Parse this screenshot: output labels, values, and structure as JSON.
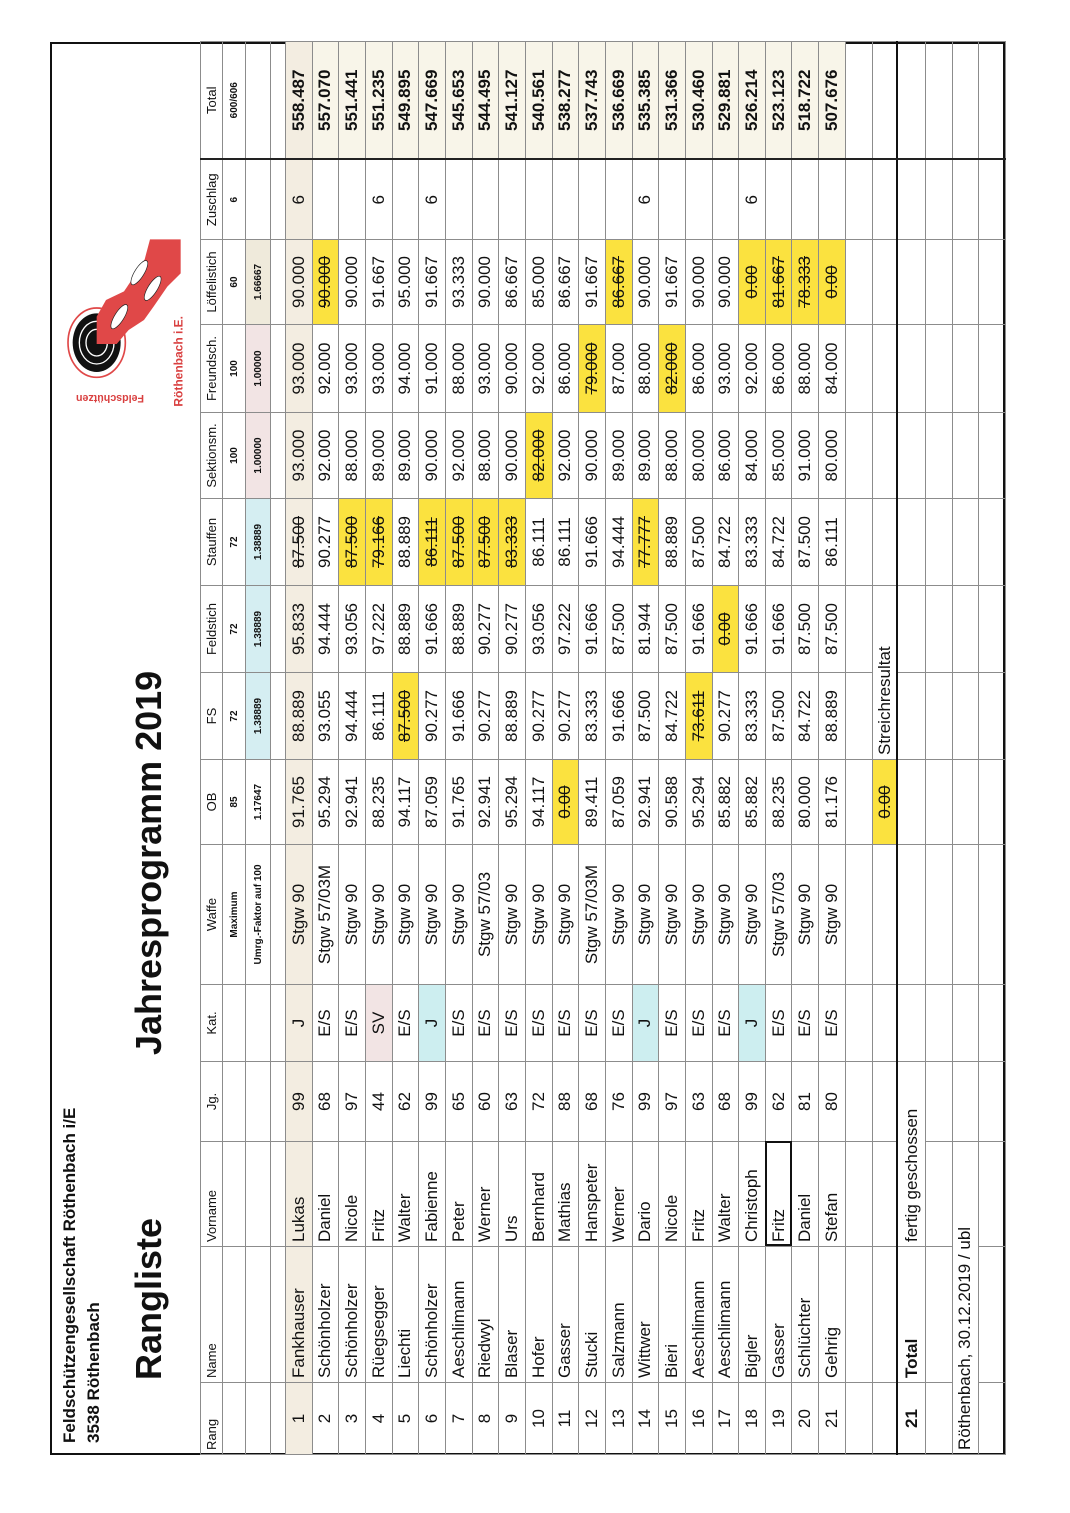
{
  "header": {
    "org": "Feldschützengesellschaft Röthenbach i/E",
    "city": "3538 Röthenbach",
    "title": "Rangliste",
    "subtitle": "Jahresprogramm 2019"
  },
  "logo": {
    "top_text": "Feldschützen",
    "bottom_text": "Röthenbach i.E."
  },
  "colors": {
    "strike_highlight": "#fbe23f",
    "junior": "#cdeef0",
    "senior_veteran": "#f2e4e4",
    "leader_row": "#f3ede1",
    "total_column": "#f8f5e9",
    "logo_red": "#e04848"
  },
  "columns": [
    {
      "key": "rang",
      "label": "Rang"
    },
    {
      "key": "name",
      "label": "Name"
    },
    {
      "key": "vorname",
      "label": "Vorname"
    },
    {
      "key": "jg",
      "label": "Jg."
    },
    {
      "key": "kat",
      "label": "Kat."
    },
    {
      "key": "waffe",
      "label": "Waffe",
      "max": "Maximum",
      "factor": "Umrg.-Faktor auf 100"
    },
    {
      "key": "ob",
      "label": "OB",
      "max": "85",
      "factor": "1.17647"
    },
    {
      "key": "fs",
      "label": "FS",
      "max": "72",
      "factor": "1.38889"
    },
    {
      "key": "feldstich",
      "label": "Feldstich",
      "max": "72",
      "factor": "1.38889"
    },
    {
      "key": "stauffen",
      "label": "Stauffen",
      "max": "72",
      "factor": "1.38889"
    },
    {
      "key": "sektionsm",
      "label": "Sektionsm.",
      "max": "100",
      "factor": "1.00000"
    },
    {
      "key": "freundsch",
      "label": "Freundsch.",
      "max": "100",
      "factor": "1.00000"
    },
    {
      "key": "loeffelstich",
      "label": "Löffelistich",
      "max": "60",
      "factor": "1.66667"
    },
    {
      "key": "zuschlag",
      "label": "Zuschlag",
      "max": "6"
    },
    {
      "key": "total",
      "label": "Total",
      "max": "600/606"
    }
  ],
  "rows": [
    {
      "rang": "1",
      "name": "Fankhauser",
      "vorname": "Lukas",
      "jg": "99",
      "kat": "J",
      "waffe": "Stgw 90",
      "ob": "91.765",
      "fs": "88.889",
      "feldstich": "95.833",
      "stauffen": "87.500",
      "sektionsm": "93.000",
      "freundsch": "93.000",
      "loeffelstich": "90.000",
      "zuschlag": "6",
      "total": "558.487",
      "struck": [
        "stauffen"
      ]
    },
    {
      "rang": "2",
      "name": "Schönholzer",
      "vorname": "Daniel",
      "jg": "68",
      "kat": "E/S",
      "waffe": "Stgw 57/03M",
      "ob": "95.294",
      "fs": "93.055",
      "feldstich": "94.444",
      "stauffen": "90.277",
      "sektionsm": "92.000",
      "freundsch": "92.000",
      "loeffelstich": "90.000",
      "zuschlag": "",
      "total": "557.070",
      "struck": [
        "loeffelstich"
      ]
    },
    {
      "rang": "3",
      "name": "Schönholzer",
      "vorname": "Nicole",
      "jg": "97",
      "kat": "E/S",
      "waffe": "Stgw 90",
      "ob": "92.941",
      "fs": "94.444",
      "feldstich": "93.056",
      "stauffen": "87.500",
      "sektionsm": "88.000",
      "freundsch": "93.000",
      "loeffelstich": "90.000",
      "zuschlag": "",
      "total": "551.441",
      "struck": [
        "stauffen"
      ]
    },
    {
      "rang": "4",
      "name": "Rüegsegger",
      "vorname": "Fritz",
      "jg": "44",
      "kat": "SV",
      "waffe": "Stgw 90",
      "ob": "88.235",
      "fs": "86.111",
      "feldstich": "97.222",
      "stauffen": "79.166",
      "sektionsm": "89.000",
      "freundsch": "93.000",
      "loeffelstich": "91.667",
      "zuschlag": "6",
      "total": "551.235",
      "struck": [
        "stauffen"
      ],
      "kat_bg": "#f2e4e4"
    },
    {
      "rang": "5",
      "name": "Liechti",
      "vorname": "Walter",
      "jg": "62",
      "kat": "E/S",
      "waffe": "Stgw 90",
      "ob": "94.117",
      "fs": "87.500",
      "feldstich": "88.889",
      "stauffen": "88.889",
      "sektionsm": "89.000",
      "freundsch": "94.000",
      "loeffelstich": "95.000",
      "zuschlag": "",
      "total": "549.895",
      "struck": [
        "fs"
      ]
    },
    {
      "rang": "6",
      "name": "Schönholzer",
      "vorname": "Fabienne",
      "jg": "99",
      "kat": "J",
      "waffe": "Stgw 90",
      "ob": "87.059",
      "fs": "90.277",
      "feldstich": "91.666",
      "stauffen": "86.111",
      "sektionsm": "90.000",
      "freundsch": "91.000",
      "loeffelstich": "91.667",
      "zuschlag": "6",
      "total": "547.669",
      "struck": [
        "stauffen"
      ],
      "kat_bg": "#cdeef0"
    },
    {
      "rang": "7",
      "name": "Aeschlimann",
      "vorname": "Peter",
      "jg": "65",
      "kat": "E/S",
      "waffe": "Stgw 90",
      "ob": "91.765",
      "fs": "91.666",
      "feldstich": "88.889",
      "stauffen": "87.500",
      "sektionsm": "92.000",
      "freundsch": "88.000",
      "loeffelstich": "93.333",
      "zuschlag": "",
      "total": "545.653",
      "struck": [
        "stauffen"
      ]
    },
    {
      "rang": "8",
      "name": "Riedwyl",
      "vorname": "Werner",
      "jg": "60",
      "kat": "E/S",
      "waffe": "Stgw 57/03",
      "ob": "92.941",
      "fs": "90.277",
      "feldstich": "90.277",
      "stauffen": "87.500",
      "sektionsm": "88.000",
      "freundsch": "93.000",
      "loeffelstich": "90.000",
      "zuschlag": "",
      "total": "544.495",
      "struck": [
        "stauffen"
      ]
    },
    {
      "rang": "9",
      "name": "Blaser",
      "vorname": "Urs",
      "jg": "63",
      "kat": "E/S",
      "waffe": "Stgw 90",
      "ob": "95.294",
      "fs": "88.889",
      "feldstich": "90.277",
      "stauffen": "83.333",
      "sektionsm": "90.000",
      "freundsch": "90.000",
      "loeffelstich": "86.667",
      "zuschlag": "",
      "total": "541.127",
      "struck": [
        "stauffen"
      ]
    },
    {
      "rang": "10",
      "name": "Hofer",
      "vorname": "Bernhard",
      "jg": "72",
      "kat": "E/S",
      "waffe": "Stgw 90",
      "ob": "94.117",
      "fs": "90.277",
      "feldstich": "93.056",
      "stauffen": "86.111",
      "sektionsm": "82.000",
      "freundsch": "92.000",
      "loeffelstich": "85.000",
      "zuschlag": "",
      "total": "540.561",
      "struck": [
        "sektionsm"
      ]
    },
    {
      "rang": "11",
      "name": "Gasser",
      "vorname": "Mathias",
      "jg": "88",
      "kat": "E/S",
      "waffe": "Stgw 90",
      "ob": "0.00",
      "fs": "90.277",
      "feldstich": "97.222",
      "stauffen": "86.111",
      "sektionsm": "92.000",
      "freundsch": "86.000",
      "loeffelstich": "86.667",
      "zuschlag": "",
      "total": "538.277",
      "struck": [
        "ob"
      ]
    },
    {
      "rang": "12",
      "name": "Stucki",
      "vorname": "Hanspeter",
      "jg": "68",
      "kat": "E/S",
      "waffe": "Stgw 57/03M",
      "ob": "89.411",
      "fs": "83.333",
      "feldstich": "91.666",
      "stauffen": "91.666",
      "sektionsm": "90.000",
      "freundsch": "79.000",
      "loeffelstich": "91.667",
      "zuschlag": "",
      "total": "537.743",
      "struck": [
        "freundsch"
      ]
    },
    {
      "rang": "13",
      "name": "Salzmann",
      "vorname": "Werner",
      "jg": "76",
      "kat": "E/S",
      "waffe": "Stgw 90",
      "ob": "87.059",
      "fs": "91.666",
      "feldstich": "87.500",
      "stauffen": "94.444",
      "sektionsm": "89.000",
      "freundsch": "87.000",
      "loeffelstich": "86.667",
      "zuschlag": "",
      "total": "536.669",
      "struck": [
        "loeffelstich"
      ]
    },
    {
      "rang": "14",
      "name": "Wittwer",
      "vorname": "Dario",
      "jg": "99",
      "kat": "J",
      "waffe": "Stgw 90",
      "ob": "92.941",
      "fs": "87.500",
      "feldstich": "81.944",
      "stauffen": "77.777",
      "sektionsm": "89.000",
      "freundsch": "88.000",
      "loeffelstich": "90.000",
      "zuschlag": "6",
      "total": "535.385",
      "struck": [
        "stauffen"
      ],
      "kat_bg": "#cdeef0"
    },
    {
      "rang": "15",
      "name": "Bieri",
      "vorname": "Nicole",
      "jg": "97",
      "kat": "E/S",
      "waffe": "Stgw 90",
      "ob": "90.588",
      "fs": "84.722",
      "feldstich": "87.500",
      "stauffen": "88.889",
      "sektionsm": "88.000",
      "freundsch": "82.000",
      "loeffelstich": "91.667",
      "zuschlag": "",
      "total": "531.366",
      "struck": [
        "freundsch"
      ]
    },
    {
      "rang": "16",
      "name": "Aeschlimann",
      "vorname": "Fritz",
      "jg": "63",
      "kat": "E/S",
      "waffe": "Stgw 90",
      "ob": "95.294",
      "fs": "73.611",
      "feldstich": "91.666",
      "stauffen": "87.500",
      "sektionsm": "80.000",
      "freundsch": "86.000",
      "loeffelstich": "90.000",
      "zuschlag": "",
      "total": "530.460",
      "struck": [
        "fs"
      ]
    },
    {
      "rang": "17",
      "name": "Aeschlimann",
      "vorname": "Walter",
      "jg": "68",
      "kat": "E/S",
      "waffe": "Stgw 90",
      "ob": "85.882",
      "fs": "90.277",
      "feldstich": "0.00",
      "stauffen": "84.722",
      "sektionsm": "86.000",
      "freundsch": "93.000",
      "loeffelstich": "90.000",
      "zuschlag": "",
      "total": "529.881",
      "struck": [
        "feldstich"
      ]
    },
    {
      "rang": "18",
      "name": "Bigler",
      "vorname": "Christoph",
      "jg": "99",
      "kat": "J",
      "waffe": "Stgw 90",
      "ob": "85.882",
      "fs": "83.333",
      "feldstich": "91.666",
      "stauffen": "83.333",
      "sektionsm": "84.000",
      "freundsch": "92.000",
      "loeffelstich": "0.00",
      "zuschlag": "6",
      "total": "526.214",
      "struck": [
        "loeffelstich"
      ],
      "kat_bg": "#cdeef0"
    },
    {
      "rang": "19",
      "name": "Gasser",
      "vorname": "Fritz",
      "jg": "62",
      "kat": "E/S",
      "waffe": "Stgw 57/03",
      "ob": "88.235",
      "fs": "87.500",
      "feldstich": "91.666",
      "stauffen": "84.722",
      "sektionsm": "85.000",
      "freundsch": "86.000",
      "loeffelstich": "81.667",
      "zuschlag": "",
      "total": "523.123",
      "struck": [
        "loeffelstich"
      ],
      "selected": "vorname"
    },
    {
      "rang": "20",
      "name": "Schlüchter",
      "vorname": "Daniel",
      "jg": "81",
      "kat": "E/S",
      "waffe": "Stgw 90",
      "ob": "80.000",
      "fs": "84.722",
      "feldstich": "87.500",
      "stauffen": "87.500",
      "sektionsm": "91.000",
      "freundsch": "88.000",
      "loeffelstich": "78.333",
      "zuschlag": "",
      "total": "518.722",
      "struck": [
        "loeffelstich"
      ]
    },
    {
      "rang": "21",
      "name": "Gehrig",
      "vorname": "Stefan",
      "jg": "80",
      "kat": "E/S",
      "waffe": "Stgw 90",
      "ob": "81.176",
      "fs": "88.889",
      "feldstich": "87.500",
      "stauffen": "86.111",
      "sektionsm": "80.000",
      "freundsch": "84.000",
      "loeffelstich": "0.00",
      "zuschlag": "",
      "total": "507.676",
      "struck": [
        "loeffelstich"
      ]
    }
  ],
  "strike_row": {
    "value": "0.00",
    "label": "Streichresultat"
  },
  "total_row": {
    "count": "21",
    "label": "Total",
    "note": "fertig geschossen"
  },
  "footer": "Röthenbach, 30.12.2019 / ubl"
}
